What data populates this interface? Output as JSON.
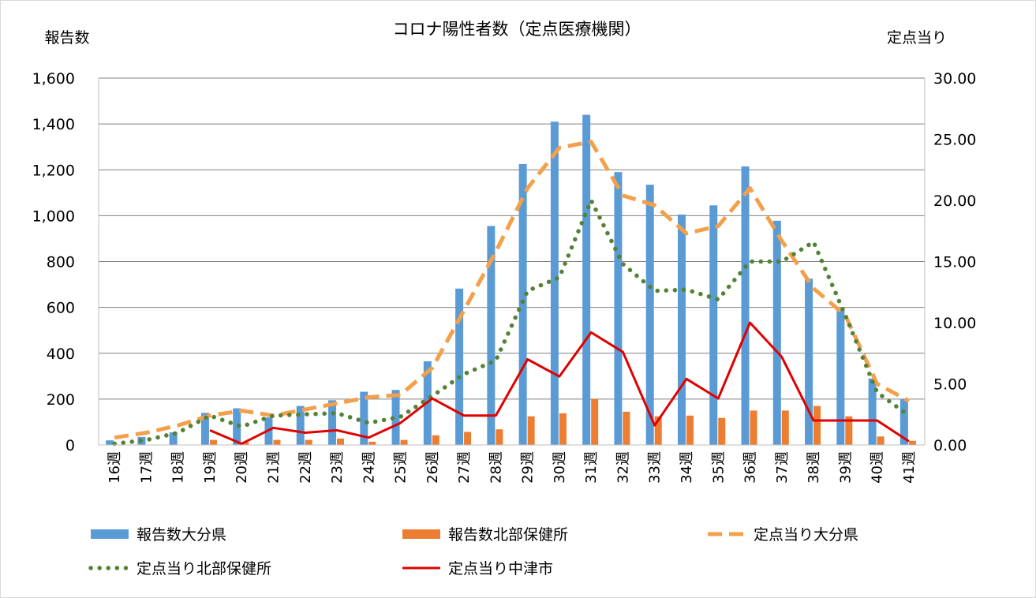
{
  "chart_data": {
    "type": "bar",
    "title": "コロナ陽性者数（定点医療機関）",
    "ylabel": "報告数",
    "y2label": "定点当り",
    "ylim": [
      0,
      1600
    ],
    "y2lim": [
      0,
      30
    ],
    "yticks": [
      "0",
      "200",
      "400",
      "600",
      "800",
      "1,000",
      "1,200",
      "1,400",
      "1,600"
    ],
    "y2ticks": [
      "0.00",
      "5.00",
      "10.00",
      "15.00",
      "20.00",
      "25.00",
      "30.00"
    ],
    "categories": [
      "16週",
      "17週",
      "18週",
      "19週",
      "20週",
      "21週",
      "22週",
      "23週",
      "24週",
      "25週",
      "26週",
      "27週",
      "28週",
      "29週",
      "30週",
      "31週",
      "32週",
      "33週",
      "34週",
      "35週",
      "36週",
      "37週",
      "38週",
      "39週",
      "40週",
      "41週"
    ],
    "grid": true,
    "legend_position": "bottom",
    "series": [
      {
        "name": "報告数大分県",
        "type": "bar",
        "axis": "left",
        "color": "#5b9bd5",
        "values": [
          20,
          35,
          55,
          140,
          160,
          120,
          170,
          195,
          232,
          240,
          365,
          682,
          955,
          1225,
          1410,
          1440,
          1190,
          1135,
          1005,
          1045,
          1215,
          978,
          725,
          595,
          290,
          200
        ]
      },
      {
        "name": "報告数北部保健所",
        "type": "bar",
        "axis": "left",
        "color": "#ed7d31",
        "values": [
          0,
          0,
          0,
          22,
          12,
          22,
          22,
          28,
          14,
          22,
          42,
          57,
          68,
          125,
          138,
          200,
          145,
          125,
          128,
          118,
          150,
          150,
          170,
          125,
          37,
          18
        ]
      },
      {
        "name": "定点当り大分県",
        "type": "line",
        "style": "dashed",
        "axis": "right",
        "color": "#f4a04a",
        "values": [
          0.6,
          1.0,
          1.6,
          2.4,
          2.8,
          2.4,
          2.9,
          3.4,
          3.9,
          4.1,
          6.3,
          11.0,
          15.8,
          21.0,
          24.3,
          24.8,
          20.4,
          19.6,
          17.3,
          17.9,
          21.0,
          16.7,
          12.8,
          10.6,
          5.0,
          3.6
        ]
      },
      {
        "name": "定点当り北部保健所",
        "type": "line",
        "style": "dotted",
        "axis": "right",
        "color": "#548235",
        "values": [
          0.1,
          0.4,
          1.0,
          2.4,
          1.5,
          2.4,
          2.5,
          2.6,
          1.8,
          2.3,
          4.0,
          5.8,
          6.9,
          12.6,
          13.7,
          20.0,
          14.8,
          12.6,
          12.7,
          11.9,
          15.0,
          15.0,
          16.6,
          10.6,
          4.3,
          2.4
        ]
      },
      {
        "name": "定点当り中津市",
        "type": "line",
        "style": "solid",
        "axis": "right",
        "color": "#e00000",
        "values": [
          null,
          null,
          null,
          1.2,
          0.1,
          1.4,
          1.0,
          1.2,
          0.6,
          1.8,
          3.8,
          2.4,
          2.4,
          7.0,
          5.6,
          9.2,
          7.6,
          1.6,
          5.4,
          3.8,
          10.0,
          7.2,
          2.0,
          2.0,
          2.0,
          0.3
        ]
      }
    ]
  }
}
